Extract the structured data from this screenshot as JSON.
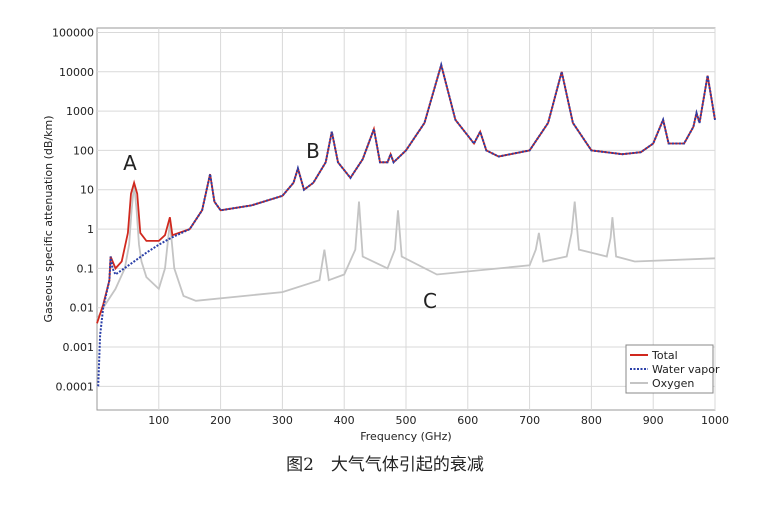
{
  "chart_data": {
    "type": "line",
    "caption": "图2　大气气体引起的衰减",
    "x_label": "Frequency (GHz)",
    "y_label": "Gaseous specific attenuation (dB/km)",
    "log_y": true,
    "grid": true,
    "legend": "lower right",
    "xlim": [
      0,
      1000
    ],
    "xticks": [
      100,
      200,
      300,
      400,
      500,
      600,
      700,
      800,
      900,
      1000
    ],
    "ylim": [
      2.5e-05,
      130000
    ],
    "yticks": [
      0.0001,
      0.001,
      0.01,
      0.1,
      1,
      10,
      100,
      1000,
      10000,
      100000
    ],
    "annotations": [
      "A",
      "B",
      "C"
    ],
    "series": [
      {
        "name": "Oxygen",
        "color": "#c4c4c4",
        "style": "solid",
        "x": [
          0,
          10,
          30,
          45,
          52,
          56,
          60,
          64,
          68,
          72,
          80,
          100,
          110,
          118,
          125,
          140,
          160,
          300,
          360,
          368,
          375,
          400,
          418,
          424,
          430,
          470,
          482,
          487,
          493,
          550,
          700,
          710,
          715,
          722,
          760,
          768,
          773,
          780,
          825,
          831,
          834,
          840,
          870,
          1000
        ],
        "values": [
          0.005,
          0.01,
          0.03,
          0.1,
          0.4,
          3,
          14,
          3,
          0.4,
          0.15,
          0.06,
          0.03,
          0.1,
          1.5,
          0.1,
          0.02,
          0.015,
          0.025,
          0.05,
          0.3,
          0.05,
          0.07,
          0.3,
          5,
          0.2,
          0.1,
          0.3,
          3,
          0.2,
          0.07,
          0.12,
          0.3,
          0.8,
          0.15,
          0.2,
          0.8,
          5,
          0.3,
          0.2,
          0.6,
          2,
          0.2,
          0.15,
          0.18
        ]
      },
      {
        "name": "Total",
        "color": "#d0281e",
        "style": "solid",
        "x": [
          0,
          10,
          20,
          22,
          30,
          40,
          50,
          55,
          60,
          65,
          70,
          80,
          100,
          110,
          118,
          122,
          150,
          170,
          183,
          190,
          200,
          250,
          300,
          318,
          325,
          335,
          350,
          370,
          380,
          390,
          410,
          430,
          448,
          458,
          470,
          475,
          480,
          500,
          530,
          557,
          580,
          610,
          620,
          630,
          650,
          700,
          730,
          752,
          770,
          800,
          850,
          880,
          900,
          916,
          925,
          950,
          965,
          970,
          975,
          988,
          1000
        ],
        "values": [
          0.004,
          0.012,
          0.05,
          0.2,
          0.1,
          0.15,
          0.8,
          8,
          15,
          8,
          0.8,
          0.5,
          0.5,
          0.7,
          2,
          0.7,
          1,
          3,
          25,
          5,
          3,
          4,
          7,
          15,
          35,
          10,
          15,
          50,
          300,
          50,
          20,
          60,
          350,
          50,
          50,
          80,
          50,
          100,
          500,
          15000,
          600,
          150,
          300,
          100,
          70,
          100,
          500,
          10000,
          500,
          100,
          80,
          90,
          150,
          600,
          150,
          150,
          400,
          900,
          500,
          8000,
          600
        ]
      },
      {
        "name": "Water vapor",
        "color": "#2a3fa8",
        "style": "dotted",
        "x": [
          2,
          5,
          10,
          20,
          22,
          25,
          30,
          40,
          60,
          80,
          100,
          120,
          150,
          170,
          183,
          190,
          200,
          250,
          300,
          318,
          325,
          335,
          350,
          370,
          380,
          390,
          410,
          430,
          448,
          458,
          470,
          475,
          480,
          500,
          530,
          557,
          580,
          610,
          620,
          630,
          650,
          700,
          730,
          752,
          770,
          800,
          850,
          880,
          900,
          916,
          925,
          950,
          965,
          970,
          975,
          988,
          1000
        ],
        "values": [
          0.0001,
          0.002,
          0.01,
          0.05,
          0.2,
          0.1,
          0.07,
          0.09,
          0.15,
          0.25,
          0.4,
          0.6,
          1,
          3,
          25,
          5,
          3,
          4,
          7,
          15,
          35,
          10,
          15,
          50,
          300,
          50,
          20,
          60,
          350,
          50,
          50,
          80,
          50,
          100,
          500,
          15000,
          600,
          150,
          300,
          100,
          70,
          100,
          500,
          10000,
          500,
          100,
          80,
          90,
          150,
          600,
          150,
          150,
          400,
          900,
          500,
          8000,
          600
        ]
      }
    ]
  }
}
